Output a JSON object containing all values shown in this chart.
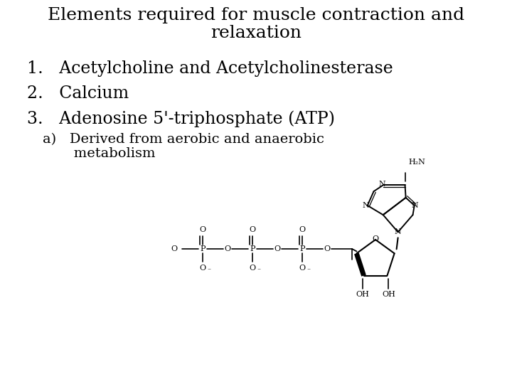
{
  "bg": "#ffffff",
  "title1": "Elements required for muscle contraction and",
  "title2": "relaxation",
  "item1": "1.   Acetylcholine and Acetylcholinesterase",
  "item2": "2.   Calcium",
  "item3": "3.   Adenosine 5'-triphosphate (ATP)",
  "sub1": "a)   Derived from aerobic and anaerobic",
  "sub2": "       metabolism",
  "title_fs": 18,
  "item_fs": 17,
  "sub_fs": 14,
  "chem_fs": 8
}
